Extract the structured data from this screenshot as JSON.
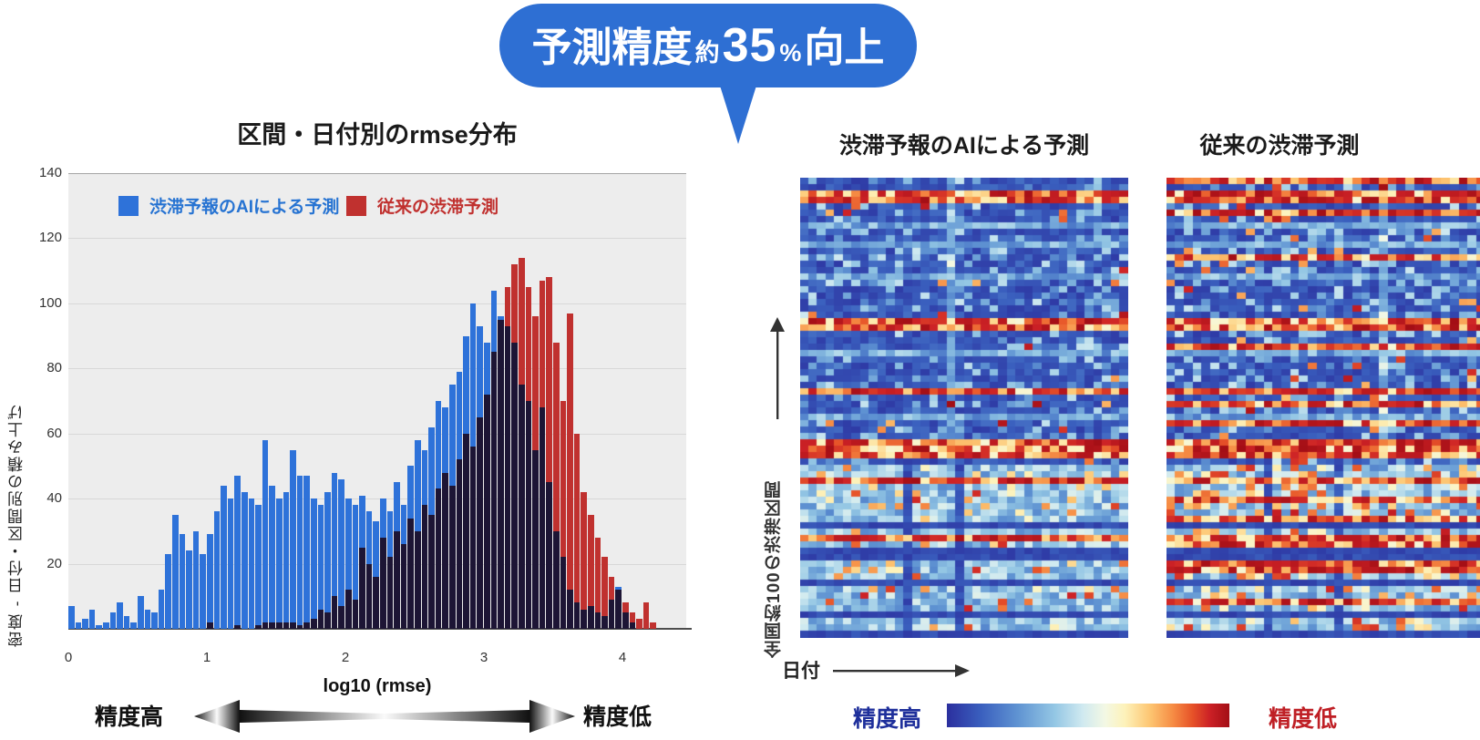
{
  "callout": {
    "part1": "予測精度",
    "part_small1": "約",
    "part_num": "35",
    "part_small2": "%",
    "part2": "向上",
    "bg_color": "#2e6fd3",
    "text_color": "#ffffff"
  },
  "heatmap_axis": {
    "ylabel": "全国約100の渋滞区間",
    "xlabel": "日付"
  },
  "colorbar": {
    "label_high_accuracy": "精度高",
    "label_low_accuracy": "精度低",
    "high_color": "#1e2f9b",
    "low_color": "#bf1f25"
  },
  "chart_data": [
    {
      "type": "bar",
      "variant": "overlaid-histogram",
      "title": "区間・日付別のrmse分布",
      "xlabel": "log10 (rmse)",
      "ylabel": "密度 - 日付・区間別の積み上げ",
      "xlim": [
        0,
        4.46
      ],
      "ylim": [
        0,
        140
      ],
      "x_ticks": [
        0,
        1,
        2,
        3,
        4
      ],
      "y_ticks": [
        20,
        40,
        60,
        80,
        100,
        120,
        140
      ],
      "bin_start": 0,
      "bin_width": 0.05,
      "grid": true,
      "plot_bg": "#ededed",
      "grid_color": "#d8d8d8",
      "grid_top_color": "#a5a5a5",
      "overlap_color": "#1d1535",
      "annotation_left": "精度高",
      "annotation_right": "精度低",
      "legend_position": "top-inside",
      "series": [
        {
          "name": "渋滞予報のAIによる予測",
          "color": "#2e72d9",
          "label_color": "#2673d2",
          "values": [
            7,
            2,
            3,
            6,
            1,
            2,
            5,
            8,
            4,
            2,
            10,
            6,
            5,
            12,
            23,
            35,
            29,
            24,
            30,
            23,
            29,
            36,
            44,
            40,
            47,
            42,
            40,
            38,
            58,
            44,
            40,
            42,
            55,
            47,
            47,
            40,
            38,
            42,
            48,
            46,
            40,
            38,
            41,
            36,
            33,
            40,
            36,
            45,
            38,
            50,
            58,
            55,
            62,
            70,
            68,
            75,
            79,
            90,
            100,
            93,
            88,
            104,
            96,
            93,
            88,
            75,
            70,
            55,
            68,
            45,
            30,
            22,
            12,
            8,
            6,
            7,
            5,
            4,
            9,
            13,
            5,
            2,
            0,
            0,
            0,
            0,
            0,
            0,
            0,
            0,
            0
          ]
        },
        {
          "name": "従来の渋滞予測",
          "color": "#c0312f",
          "label_color": "#c0302e",
          "values": [
            0,
            0,
            0,
            0,
            0,
            0,
            0,
            0,
            0,
            0,
            0,
            0,
            0,
            0,
            0,
            0,
            0,
            0,
            0,
            0,
            2,
            0,
            0,
            0,
            1,
            0,
            0,
            1,
            2,
            2,
            2,
            2,
            2,
            1,
            2,
            3,
            6,
            5,
            10,
            7,
            12,
            9,
            25,
            20,
            16,
            28,
            22,
            30,
            26,
            34,
            30,
            38,
            35,
            43,
            48,
            44,
            52,
            60,
            56,
            65,
            72,
            85,
            95,
            105,
            112,
            114,
            105,
            96,
            107,
            108,
            88,
            70,
            97,
            60,
            42,
            35,
            28,
            22,
            16,
            12,
            8,
            5,
            3,
            8,
            2,
            0,
            0,
            0,
            0,
            0,
            0
          ]
        }
      ]
    },
    {
      "type": "heatmap",
      "title": "渋滞予報のAIによる予測",
      "rows": 72,
      "cols": 38,
      "seed": 42,
      "hot_rows": [
        2,
        3,
        22,
        23,
        33,
        41,
        42,
        43,
        47,
        56
      ],
      "light_rows": [
        7,
        10,
        15,
        27,
        37
      ],
      "dark_rows": [
        54,
        58,
        59,
        63,
        68,
        71
      ],
      "light_zone_start": 45,
      "dark_cols": [
        12,
        18
      ],
      "light_cols": [
        17
      ],
      "hot_cell_p": 0.02,
      "light_cell_p": 0.2,
      "warm_lower_p": 0.1
    },
    {
      "type": "heatmap",
      "title": "従来の渋滞予測",
      "rows": 72,
      "cols": 37,
      "seed": 1337,
      "hot_rows": [
        0,
        2,
        3,
        5,
        12,
        22,
        23,
        26,
        33,
        35,
        38,
        41,
        42,
        43,
        47,
        50,
        53,
        56,
        57,
        60,
        61,
        66
      ],
      "light_rows": [
        7,
        10,
        15,
        27,
        37
      ],
      "dark_rows": [
        54,
        58,
        59,
        63,
        68,
        71
      ],
      "light_zone_start": 45,
      "dark_cols": [
        11,
        19
      ],
      "light_cols": [
        24
      ],
      "hot_cell_p": 0.05,
      "light_cell_p": 0.25,
      "warm_lower_p": 0.22
    },
    {
      "type": "colorbar",
      "orientation": "horizontal",
      "meaning_left": "精度高",
      "meaning_right": "精度低",
      "stops": [
        [
          0,
          "#2b2f9e"
        ],
        [
          0.12,
          "#3a5fbe"
        ],
        [
          0.25,
          "#5f93d2"
        ],
        [
          0.38,
          "#93c6e4"
        ],
        [
          0.48,
          "#cfe9f0"
        ],
        [
          0.56,
          "#f3f8e4"
        ],
        [
          0.63,
          "#fdf2ba"
        ],
        [
          0.72,
          "#fdc571"
        ],
        [
          0.8,
          "#f68c44"
        ],
        [
          0.87,
          "#e65228"
        ],
        [
          0.93,
          "#cc2126"
        ],
        [
          1,
          "#a30e15"
        ]
      ]
    }
  ]
}
